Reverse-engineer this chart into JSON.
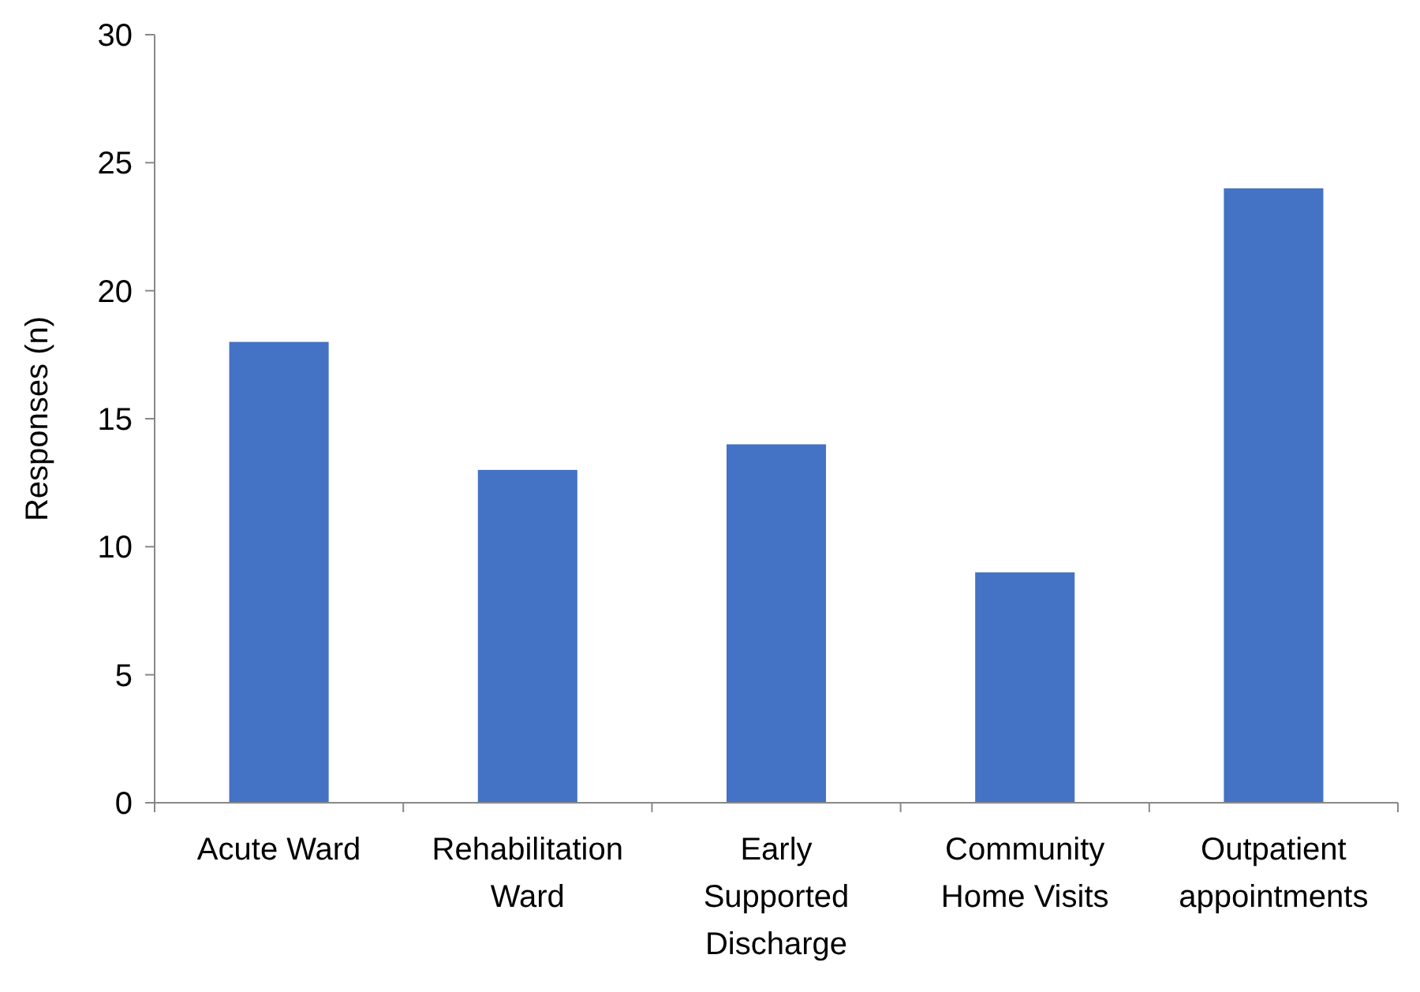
{
  "chart_data": {
    "type": "bar",
    "ylabel": "Responses (n)",
    "categories": [
      "Acute Ward",
      "Rehabilitation Ward",
      "Early Supported Discharge",
      "Community Home Visits",
      "Outpatient appointments"
    ],
    "values": [
      18,
      13,
      14,
      9,
      24
    ],
    "color": "#4472c4",
    "ylim": [
      0,
      30
    ],
    "yticks": [
      0,
      5,
      10,
      15,
      20,
      25,
      30
    ],
    "grid": false
  }
}
